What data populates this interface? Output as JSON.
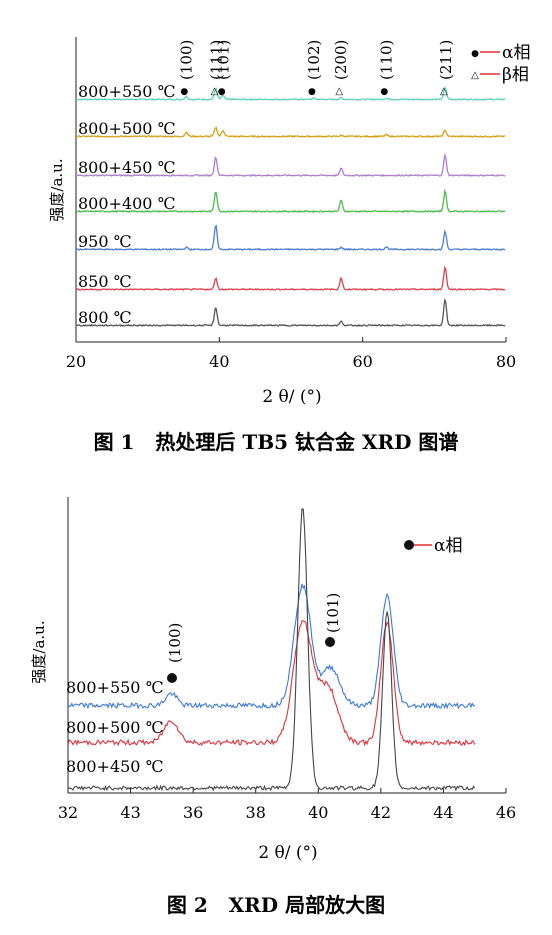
{
  "figure1": {
    "caption": "图 1   热处理后 TB5 钛合金 XRD 图谱",
    "ylabel": "强度/a.u.",
    "xlabel": "2 θ/ (°)"
  },
  "figure2": {
    "caption": "图 2   XRD 局部放大图",
    "ylabel": "强度/a.u.",
    "xlabel": "2 θ/ (°)"
  },
  "chart_data": [
    {
      "type": "line",
      "xlim": [
        20,
        80
      ],
      "x_ticks": [
        "20",
        "40",
        "60",
        "80"
      ],
      "legend": [
        {
          "marker": "●",
          "label": "α相",
          "color": "#e03030"
        },
        {
          "marker": "△",
          "label": "β相",
          "color": "#e03030"
        }
      ],
      "peak_labels": [
        {
          "text": "(100)",
          "x": 35.4,
          "marker": "●"
        },
        {
          "text": "(111)",
          "x": 39.6,
          "marker": "△"
        },
        {
          "text": "(101)",
          "x": 40.6,
          "marker": "●"
        },
        {
          "text": "(102)",
          "x": 53.2,
          "marker": "●"
        },
        {
          "text": "(200)",
          "x": 57.0,
          "marker": "△"
        },
        {
          "text": "(110)",
          "x": 63.3,
          "marker": "●"
        },
        {
          "text": "(211)",
          "x": 71.6,
          "marker": "△"
        }
      ],
      "series": [
        {
          "name": "800+550 ℃",
          "color": "#5fd3b4",
          "peaks": [
            [
              35.4,
              0.15
            ],
            [
              39.5,
              0.55
            ],
            [
              40.5,
              0.2
            ],
            [
              53.2,
              0.06
            ],
            [
              57.0,
              0.08
            ],
            [
              63.3,
              0.06
            ],
            [
              71.5,
              0.6
            ]
          ]
        },
        {
          "name": "800+500 ℃",
          "color": "#d4a017",
          "peaks": [
            [
              35.4,
              0.2
            ],
            [
              39.5,
              0.45
            ],
            [
              40.5,
              0.3
            ],
            [
              57.0,
              0.05
            ],
            [
              63.3,
              0.08
            ],
            [
              71.5,
              0.3
            ]
          ]
        },
        {
          "name": "800+450 ℃",
          "color": "#b07ccf",
          "peaks": [
            [
              39.5,
              0.9
            ],
            [
              57.0,
              0.35
            ],
            [
              71.5,
              1.0
            ]
          ]
        },
        {
          "name": "800+400 ℃",
          "color": "#4cbb4c",
          "peaks": [
            [
              39.5,
              1.0
            ],
            [
              57.0,
              0.55
            ],
            [
              71.5,
              1.0
            ]
          ]
        },
        {
          "name": "950 ℃",
          "color": "#4b7fd1",
          "peaks": [
            [
              35.4,
              0.1
            ],
            [
              39.5,
              1.2
            ],
            [
              57.0,
              0.1
            ],
            [
              63.3,
              0.12
            ],
            [
              71.5,
              0.9
            ]
          ]
        },
        {
          "name": "850 ℃",
          "color": "#e04050",
          "peaks": [
            [
              39.5,
              0.55
            ],
            [
              57.0,
              0.55
            ],
            [
              71.5,
              1.1
            ]
          ]
        },
        {
          "name": "800 ℃",
          "color": "#555555",
          "peaks": [
            [
              39.5,
              0.9
            ],
            [
              57.0,
              0.2
            ],
            [
              71.5,
              1.3
            ]
          ]
        }
      ]
    },
    {
      "type": "line",
      "x_ticks": [
        "32",
        "43",
        "36",
        "38",
        "40",
        "42",
        "44",
        "46"
      ],
      "legend": [
        {
          "marker": "●",
          "label": "α相",
          "color": "#e03030"
        }
      ],
      "peak_labels": [
        {
          "text": "(100)",
          "marker": "●"
        },
        {
          "text": "(101)",
          "marker": "●"
        }
      ],
      "series": [
        {
          "name": "800+550 ℃",
          "color": "#3a78d8"
        },
        {
          "name": "800+500 ℃",
          "color": "#e0303a"
        },
        {
          "name": "800+450 ℃",
          "color": "#444444"
        }
      ]
    }
  ]
}
